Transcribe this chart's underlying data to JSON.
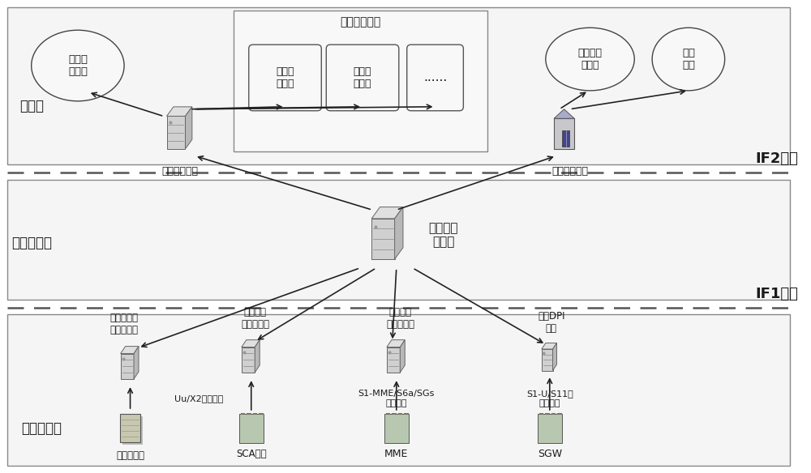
{
  "bg_color": "#ffffff",
  "layer_labels": {
    "app": "应用层",
    "decode": "数据解码层",
    "collect": "数据采集层"
  },
  "interface_labels": {
    "if2": "IF2接口",
    "if1": "IF1接口"
  },
  "other_app_label": "其他应用系统",
  "perf_mgmt": "性能管\n理系统",
  "opt_mgmt": "优化管\n理系统",
  "dots": "......",
  "centralized": "集中化经\n分系统",
  "designated_sys": "指定\n系统",
  "designated_person": "指定系\n统人员",
  "log_query": "日志查询平台",
  "log_gateway": "日志上报网关",
  "data_synthesis": "数据合成\n服务器",
  "firewall_front_label": "防火墙日志\n采集前置机",
  "soft_acq_label": "软采采集\n解析服务器",
  "hard_acq_label": "硬采采集\n解析服务器",
  "dpi_label": "统一DPI\n设备",
  "exit_fw_label": "出口防火墙",
  "sca_label": "SCA设备",
  "mme_label": "MME",
  "sgw_label": "SGW",
  "uu_x2_label": "Uu/X2软采数据",
  "s1_mme_label": "S1-MME/S6a/SGs\n原始码流",
  "s1_u_label": "S1-U/S11等\n原始码流"
}
